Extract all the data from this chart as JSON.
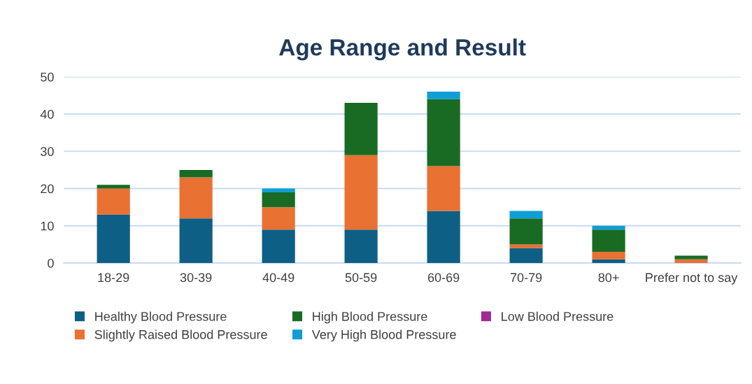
{
  "chart_data": {
    "type": "bar",
    "title": "Age Range and Result",
    "stacked": true,
    "categories": [
      "18-29",
      "30-39",
      "40-49",
      "50-59",
      "60-69",
      "70-79",
      "80+",
      "Prefer not to say"
    ],
    "series": [
      {
        "name": "Healthy Blood Pressure",
        "color": "#0e5f85",
        "values": [
          13,
          12,
          9,
          9,
          14,
          4,
          1,
          0
        ]
      },
      {
        "name": "Slightly Raised Blood Pressure",
        "color": "#e97132",
        "values": [
          7,
          11,
          6,
          20,
          12,
          1,
          2,
          1
        ]
      },
      {
        "name": "High Blood Pressure",
        "color": "#196b24",
        "values": [
          1,
          2,
          4,
          14,
          18,
          7,
          6,
          1
        ]
      },
      {
        "name": "Very High Blood Pressure",
        "color": "#0f9ed5",
        "values": [
          0,
          0,
          1,
          0,
          2,
          2,
          1,
          0
        ]
      },
      {
        "name": "Low Blood Pressure",
        "color": "#a02b93",
        "values": [
          0,
          0,
          0,
          0,
          0,
          0,
          0,
          0
        ]
      }
    ],
    "ylim": [
      0,
      50
    ],
    "yticks": [
      0,
      10,
      20,
      30,
      40,
      50
    ],
    "grid": "y",
    "legend": "bottom"
  }
}
